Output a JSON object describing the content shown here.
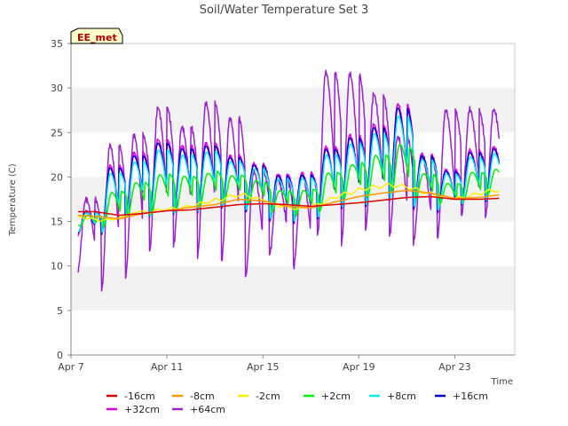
{
  "chart_data": {
    "type": "line",
    "title": "Soil/Water Temperature Set 3",
    "xlabel": "Time",
    "ylabel": "Temperature (C)",
    "site_label": "EE_met",
    "x_range_days": [
      7,
      25.5
    ],
    "xticks": [
      {
        "day": 7,
        "label": "Apr 7"
      },
      {
        "day": 11,
        "label": "Apr 11"
      },
      {
        "day": 15,
        "label": "Apr 15"
      },
      {
        "day": 19,
        "label": "Apr 19"
      },
      {
        "day": 23,
        "label": "Apr 23"
      }
    ],
    "ylim": [
      0,
      35
    ],
    "yticks": [
      0,
      5,
      10,
      15,
      20,
      25,
      30,
      35
    ],
    "grid": "horizontal alternating bands",
    "legend_position": "bottom",
    "data_start_day": 7.3,
    "data_end_day": 24.85,
    "series": [
      {
        "name": "-16cm",
        "color": "#dd0000",
        "values": [
          [
            7.3,
            16.1
          ],
          [
            8.0,
            16.1
          ],
          [
            9.0,
            15.7
          ],
          [
            10.0,
            15.9
          ],
          [
            11.0,
            16.2
          ],
          [
            12.0,
            16.3
          ],
          [
            13.0,
            16.6
          ],
          [
            14.0,
            16.9
          ],
          [
            15.0,
            17.0
          ],
          [
            16.0,
            16.9
          ],
          [
            17.0,
            16.7
          ],
          [
            18.0,
            16.9
          ],
          [
            19.0,
            17.1
          ],
          [
            20.0,
            17.4
          ],
          [
            21.0,
            17.7
          ],
          [
            22.0,
            17.8
          ],
          [
            23.0,
            17.5
          ],
          [
            24.0,
            17.5
          ],
          [
            24.85,
            17.6
          ]
        ]
      },
      {
        "name": "-8cm",
        "color": "#ff9900",
        "values": [
          [
            7.3,
            15.7
          ],
          [
            8.0,
            15.6
          ],
          [
            9.0,
            15.3
          ],
          [
            10.0,
            15.9
          ],
          [
            11.0,
            16.2
          ],
          [
            12.0,
            16.6
          ],
          [
            13.0,
            16.9
          ],
          [
            14.0,
            17.5
          ],
          [
            15.0,
            17.3
          ],
          [
            16.0,
            16.7
          ],
          [
            17.0,
            16.5
          ],
          [
            18.0,
            17.2
          ],
          [
            19.0,
            17.8
          ],
          [
            20.0,
            18.2
          ],
          [
            21.0,
            18.5
          ],
          [
            22.0,
            18.2
          ],
          [
            23.0,
            17.6
          ],
          [
            24.0,
            17.7
          ],
          [
            24.85,
            18.0
          ]
        ]
      },
      {
        "name": "-2cm",
        "color": "#ffee00",
        "values": [
          [
            7.3,
            15.6
          ],
          [
            7.6,
            15.3
          ],
          [
            7.9,
            15.4
          ],
          [
            8.2,
            15.0
          ],
          [
            8.5,
            15.3
          ],
          [
            8.8,
            15.2
          ],
          [
            9.1,
            15.5
          ],
          [
            9.4,
            15.8
          ],
          [
            9.7,
            16.0
          ],
          [
            10.0,
            16.2
          ],
          [
            10.3,
            15.9
          ],
          [
            10.6,
            16.4
          ],
          [
            10.9,
            16.2
          ],
          [
            11.2,
            16.6
          ],
          [
            11.5,
            16.3
          ],
          [
            11.8,
            16.8
          ],
          [
            12.1,
            16.6
          ],
          [
            12.4,
            17.2
          ],
          [
            12.7,
            17.0
          ],
          [
            13.0,
            17.6
          ],
          [
            13.3,
            17.3
          ],
          [
            13.6,
            18.0
          ],
          [
            13.9,
            17.7
          ],
          [
            14.2,
            18.2
          ],
          [
            14.5,
            17.6
          ],
          [
            14.8,
            17.7
          ],
          [
            15.1,
            17.3
          ],
          [
            15.4,
            17.0
          ],
          [
            15.7,
            16.6
          ],
          [
            16.0,
            16.8
          ],
          [
            16.3,
            16.3
          ],
          [
            16.6,
            16.6
          ],
          [
            16.9,
            16.5
          ],
          [
            17.2,
            17.0
          ],
          [
            17.5,
            16.9
          ],
          [
            17.8,
            17.7
          ],
          [
            18.1,
            17.6
          ],
          [
            18.4,
            18.3
          ],
          [
            18.7,
            18.0
          ],
          [
            19.0,
            18.8
          ],
          [
            19.3,
            18.5
          ],
          [
            19.6,
            19.1
          ],
          [
            19.9,
            18.7
          ],
          [
            20.2,
            19.3
          ],
          [
            20.5,
            18.8
          ],
          [
            20.8,
            19.2
          ],
          [
            21.1,
            18.6
          ],
          [
            21.4,
            18.8
          ],
          [
            21.7,
            18.1
          ],
          [
            22.0,
            18.3
          ],
          [
            22.3,
            17.7
          ],
          [
            22.6,
            17.9
          ],
          [
            22.9,
            17.5
          ],
          [
            23.2,
            17.8
          ],
          [
            23.5,
            17.6
          ],
          [
            23.8,
            18.2
          ],
          [
            24.1,
            18.0
          ],
          [
            24.4,
            18.6
          ],
          [
            24.7,
            18.3
          ],
          [
            24.85,
            18.4
          ]
        ]
      },
      {
        "name": "+2cm",
        "color": "#00ee00",
        "amp_scale": 0.5,
        "lag": 0.08
      },
      {
        "name": "+8cm",
        "color": "#00eeee",
        "amp_scale": 0.85,
        "lag": 0.02
      },
      {
        "name": "+16cm",
        "color": "#0000cc",
        "amp_scale": 0.95,
        "lag": 0.0
      },
      {
        "name": "+32cm",
        "color": "#dd00dd",
        "daily": [
          [
            16.1,
            13.5
          ],
          [
            21.3,
            13.5
          ],
          [
            22.7,
            15.5
          ],
          [
            24.2,
            15.5
          ],
          [
            23.5,
            15.8
          ],
          [
            23.8,
            16.0
          ],
          [
            22.4,
            16.5
          ],
          [
            21.5,
            16.0
          ],
          [
            20.3,
            15.0
          ],
          [
            20.4,
            14.8
          ],
          [
            23.4,
            15.2
          ],
          [
            24.7,
            16.4
          ],
          [
            25.9,
            16.6
          ],
          [
            28.2,
            17.3
          ],
          [
            22.6,
            16.3
          ],
          [
            20.8,
            16.0
          ],
          [
            23.0,
            16.8
          ],
          [
            23.4,
            17.2
          ]
        ]
      },
      {
        "name": "+64cm",
        "color": "#9922cc",
        "daily": [
          [
            17.5,
            9.4
          ],
          [
            23.6,
            7.2
          ],
          [
            24.7,
            8.8
          ],
          [
            27.8,
            11.6
          ],
          [
            25.6,
            12.3
          ],
          [
            28.3,
            11.1
          ],
          [
            26.6,
            10.5
          ],
          [
            20.6,
            8.7
          ],
          [
            19.7,
            11.3
          ],
          [
            20.4,
            9.8
          ],
          [
            31.8,
            13.4
          ],
          [
            31.6,
            12.5
          ],
          [
            29.3,
            14.0
          ],
          [
            24.5,
            13.4
          ],
          [
            22.3,
            12.6
          ],
          [
            27.5,
            13.1
          ],
          [
            27.6,
            15.5
          ]
        ]
      }
    ]
  }
}
